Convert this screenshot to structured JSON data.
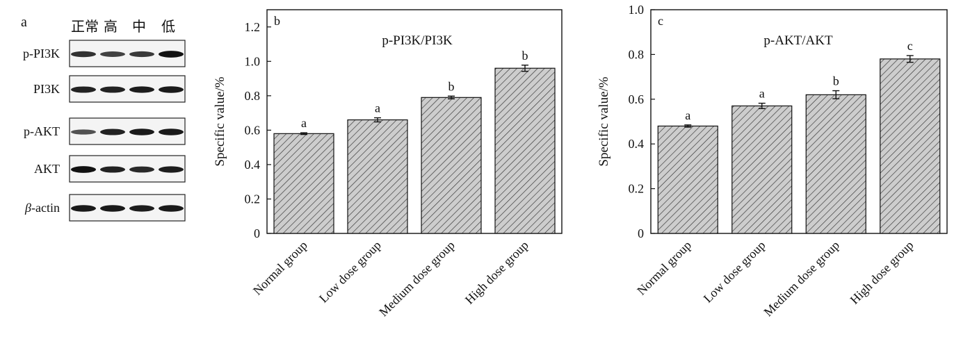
{
  "chart_data": [
    {
      "type": "western-blot",
      "panel_label": "a",
      "column_labels": [
        "正常",
        "高",
        "中",
        "低"
      ],
      "rows": [
        {
          "label": "p-PI3K",
          "intensity": [
            0.75,
            0.65,
            0.7,
            0.95
          ]
        },
        {
          "label": "PI3K",
          "intensity": [
            0.85,
            0.85,
            0.88,
            0.9
          ]
        },
        {
          "label": "p-AKT",
          "intensity": [
            0.55,
            0.85,
            0.9,
            0.9
          ]
        },
        {
          "label": "AKT",
          "intensity": [
            0.95,
            0.85,
            0.8,
            0.88
          ]
        },
        {
          "label_prefix": "β",
          "label_suffix": "-actin",
          "intensity": [
            0.9,
            0.9,
            0.88,
            0.9
          ]
        }
      ]
    },
    {
      "type": "bar",
      "panel_label": "b",
      "title": "p-PI3K/PI3K",
      "ylabel": "Specific value/%",
      "ylim": [
        0,
        1.3
      ],
      "yticks": [
        "0",
        "0.2",
        "0.4",
        "0.6",
        "0.8",
        "1.0",
        "1.2"
      ],
      "categories": [
        "Normal group",
        "Low dose group",
        "Medium dose group",
        "High dose group"
      ],
      "values": [
        0.58,
        0.66,
        0.79,
        0.96
      ],
      "errors": [
        0.005,
        0.012,
        0.008,
        0.018
      ],
      "significance": [
        "a",
        "a",
        "b",
        "b"
      ],
      "fill": "#c9c9c9",
      "hatch": "diagonal"
    },
    {
      "type": "bar",
      "panel_label": "c",
      "title": "p-AKT/AKT",
      "ylabel": "Specific value/%",
      "ylim": [
        0,
        1.0
      ],
      "yticks": [
        "0",
        "0.2",
        "0.4",
        "0.6",
        "0.8",
        "1.0"
      ],
      "categories": [
        "Normal group",
        "Low dose group",
        "Medium dose group",
        "High dose group"
      ],
      "values": [
        0.48,
        0.57,
        0.62,
        0.78
      ],
      "errors": [
        0.005,
        0.012,
        0.018,
        0.015
      ],
      "significance": [
        "a",
        "a",
        "b",
        "c"
      ],
      "fill": "#c9c9c9",
      "hatch": "diagonal"
    }
  ]
}
